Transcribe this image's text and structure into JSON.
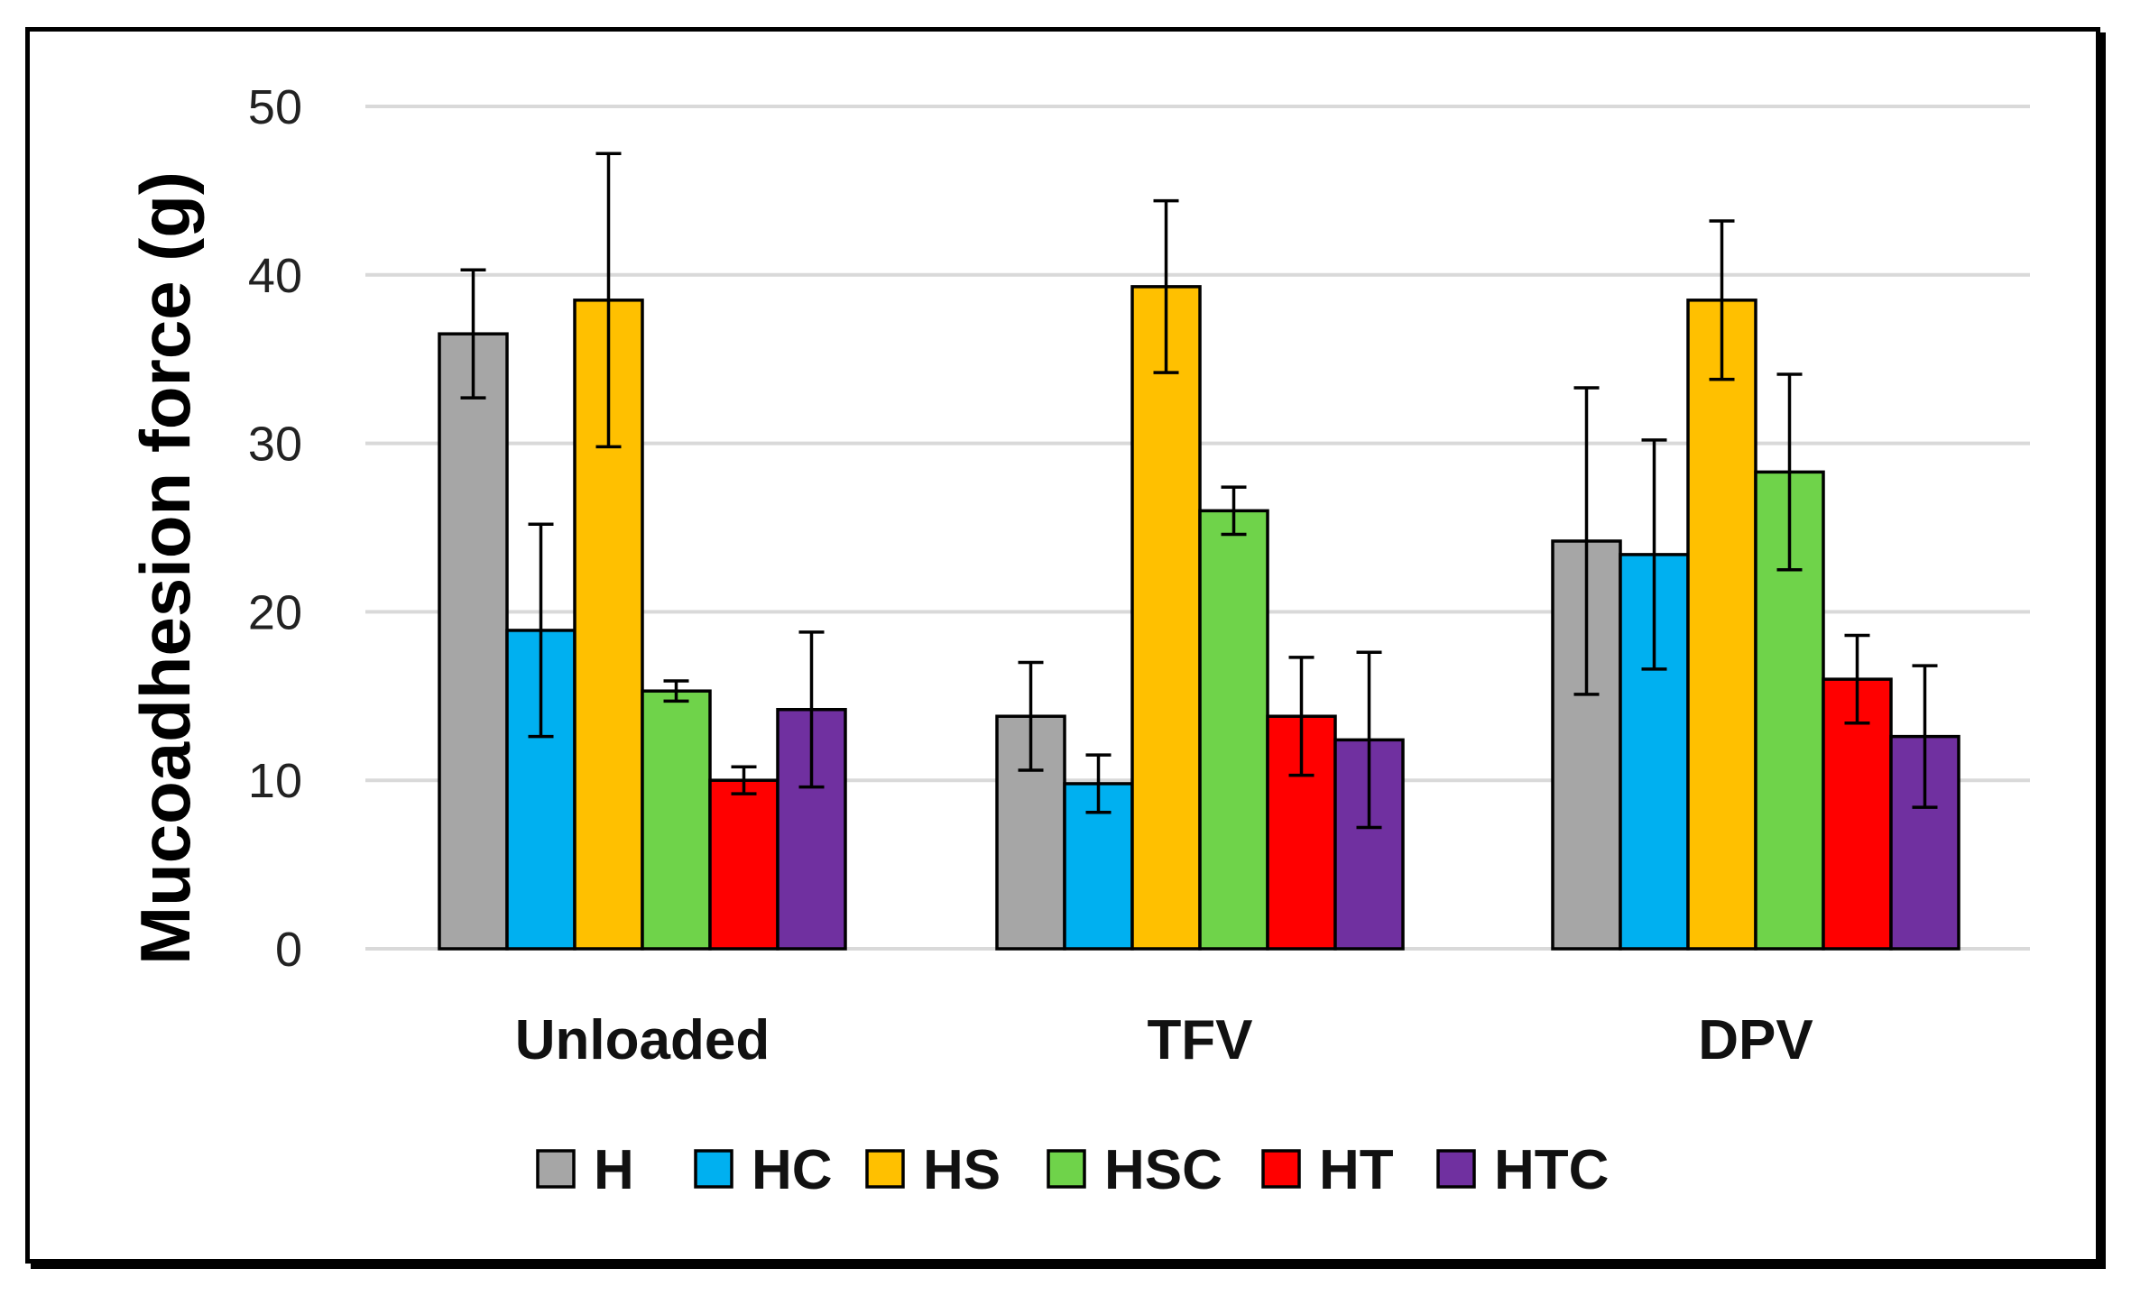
{
  "chart_data": {
    "type": "bar",
    "title": "",
    "xlabel": "",
    "ylabel": "Mucoadhesion force (g)",
    "ylim": [
      0,
      50
    ],
    "yticks": [
      0,
      10,
      20,
      30,
      40,
      50
    ],
    "grid": true,
    "legend_position": "bottom",
    "categories": [
      "Unloaded",
      "TFV",
      "DPV"
    ],
    "series": [
      {
        "name": "H",
        "color": "#a6a6a6",
        "values": [
          36.5,
          13.8,
          24.2
        ],
        "errors": [
          3.8,
          3.2,
          9.1
        ]
      },
      {
        "name": "HC",
        "color": "#00b0f0",
        "values": [
          18.9,
          9.8,
          23.4
        ],
        "errors": [
          6.3,
          1.7,
          6.8
        ]
      },
      {
        "name": "HS",
        "color": "#ffc000",
        "values": [
          38.5,
          39.3,
          38.5
        ],
        "errors": [
          8.7,
          5.1,
          4.7
        ]
      },
      {
        "name": "HSC",
        "color": "#6fd34a",
        "values": [
          15.3,
          26.0,
          28.3
        ],
        "errors": [
          0.6,
          1.4,
          5.8
        ]
      },
      {
        "name": "HT",
        "color": "#ff0000",
        "values": [
          10.0,
          13.8,
          16.0
        ],
        "errors": [
          0.8,
          3.5,
          2.6
        ]
      },
      {
        "name": "HTC",
        "color": "#7030a0",
        "values": [
          14.2,
          12.4,
          12.6
        ],
        "errors": [
          4.6,
          5.2,
          4.2
        ]
      }
    ]
  }
}
